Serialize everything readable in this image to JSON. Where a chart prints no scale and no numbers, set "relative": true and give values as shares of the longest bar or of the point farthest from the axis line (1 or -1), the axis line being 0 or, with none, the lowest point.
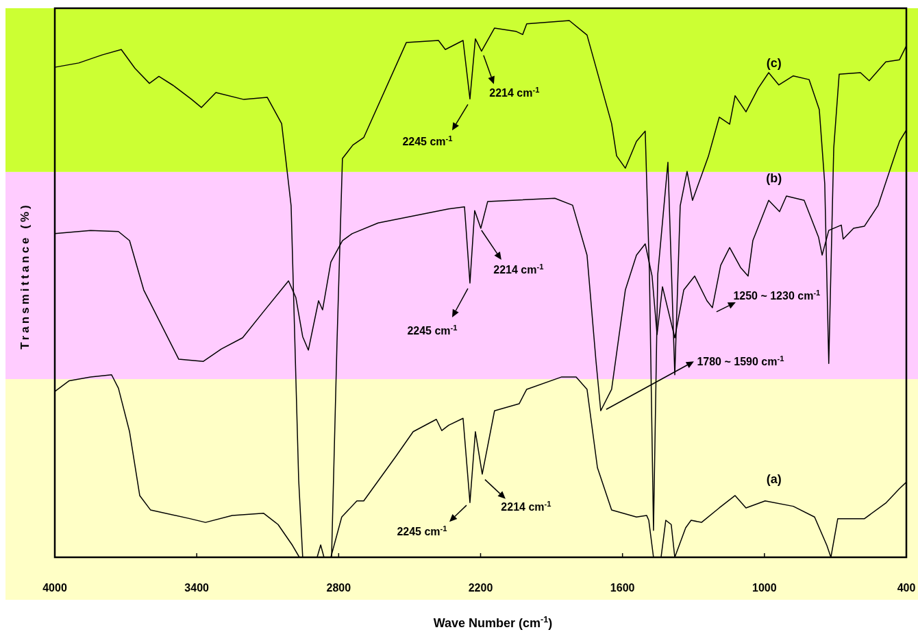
{
  "chart_data": {
    "type": "line",
    "relative": true,
    "xlabel": "Wave Number (cm$^{-1}$)",
    "ylabel": "Transmittance (%)",
    "xlim": [
      4000,
      400
    ],
    "xticks": [
      4000,
      3400,
      2800,
      2200,
      1600,
      1000,
      400
    ],
    "line_style": "solid",
    "bands": [
      {
        "axis": "y",
        "from": 0,
        "to": 0.332,
        "color": "#ffffc6"
      },
      {
        "axis": "y",
        "from": 0.332,
        "to": 0.718,
        "color": "#ffccff"
      },
      {
        "axis": "y",
        "from": 0.718,
        "to": 1.023,
        "color": "#ccff33"
      }
    ],
    "series": [
      {
        "name": "(a)",
        "color": "#000000",
        "x": [
          4000,
          3939,
          3849,
          3760,
          3731,
          3684,
          3641,
          3595,
          3429,
          3363,
          3250,
          3117,
          3056,
          2995,
          2966,
          2891,
          2876,
          2862,
          2833,
          2787,
          2723,
          2694,
          2558,
          2485,
          2387,
          2364,
          2335,
          2274,
          2245,
          2222,
          2193,
          2141,
          2037,
          2005,
          1857,
          1796,
          1750,
          1706,
          1646,
          1541,
          1498,
          1489,
          1469,
          1437,
          1417,
          1394,
          1379,
          1333,
          1310,
          1266,
          1191,
          1124,
          1078,
          997,
          878,
          788,
          736,
          719,
          690,
          577,
          487,
          429,
          400
        ],
        "values": [
          0.309,
          0.329,
          0.336,
          0.34,
          0.315,
          0.234,
          0.115,
          0.088,
          0.072,
          0.065,
          0.078,
          0.082,
          0.061,
          0.022,
          0,
          0,
          0.023,
          0,
          0,
          0.075,
          0.105,
          0.105,
          0.188,
          0.234,
          0.257,
          0.236,
          0.246,
          0.259,
          0.102,
          0.234,
          0.155,
          0.273,
          0.286,
          0.313,
          0.336,
          0.336,
          0.313,
          0.167,
          0.088,
          0.075,
          0.078,
          0.069,
          0,
          0,
          0.069,
          0.061,
          0,
          0.055,
          0.069,
          0.065,
          0.092,
          0.115,
          0.092,
          0.105,
          0.095,
          0.075,
          0.022,
          0,
          0.072,
          0.072,
          0.101,
          0.128,
          0.14
        ]
      },
      {
        "name": "(b)",
        "color": "#000000",
        "x": [
          4000,
          3849,
          3731,
          3684,
          3624,
          3476,
          3372,
          3296,
          3206,
          3117,
          3012,
          2981,
          2952,
          2928,
          2885,
          2868,
          2833,
          2784,
          2743,
          2633,
          2335,
          2268,
          2245,
          2225,
          2199,
          2170,
          1886,
          1811,
          1750,
          1712,
          1692,
          1646,
          1588,
          1541,
          1504,
          1475,
          1454,
          1431,
          1379,
          1341,
          1295,
          1243,
          1220,
          1185,
          1147,
          1101,
          1069,
          1049,
          982,
          936,
          907,
          832,
          771,
          756,
          728,
          675,
          667,
          623,
          577,
          519,
          429,
          400
        ],
        "values": [
          0.603,
          0.609,
          0.607,
          0.59,
          0.498,
          0.369,
          0.365,
          0.388,
          0.409,
          0.458,
          0.515,
          0.484,
          0.411,
          0.386,
          0.478,
          0.461,
          0.55,
          0.59,
          0.603,
          0.623,
          0.649,
          0.653,
          0.511,
          0.646,
          0.613,
          0.663,
          0.669,
          0.656,
          0.563,
          0.365,
          0.273,
          0.313,
          0.498,
          0.563,
          0.584,
          0.524,
          0.415,
          0.504,
          0.409,
          0.498,
          0.524,
          0.478,
          0.465,
          0.544,
          0.577,
          0.54,
          0.524,
          0.59,
          0.665,
          0.644,
          0.673,
          0.665,
          0.596,
          0.563,
          0.609,
          0.619,
          0.593,
          0.613,
          0.617,
          0.656,
          0.775,
          0.796
        ]
      },
      {
        "name": "(c)",
        "color": "#000000",
        "x": [
          4000,
          3899,
          3800,
          3719,
          3661,
          3600,
          3560,
          3499,
          3421,
          3380,
          3319,
          3201,
          3102,
          3041,
          3001,
          2969,
          2952,
          2830,
          2807,
          2784,
          2740,
          2694,
          2514,
          2378,
          2349,
          2274,
          2245,
          2222,
          2196,
          2141,
          2051,
          2022,
          2005,
          1825,
          1750,
          1646,
          1625,
          1588,
          1541,
          1504,
          1486,
          1469,
          1451,
          1408,
          1379,
          1356,
          1327,
          1304,
          1237,
          1191,
          1147,
          1124,
          1078,
          1026,
          982,
          939,
          878,
          811,
          768,
          745,
          728,
          707,
          684,
          594,
          557,
          487,
          429,
          400
        ],
        "values": [
          0.913,
          0.921,
          0.936,
          0.946,
          0.911,
          0.883,
          0.896,
          0.879,
          0.853,
          0.838,
          0.866,
          0.853,
          0.857,
          0.808,
          0.655,
          0.144,
          0,
          0,
          0.4,
          0.743,
          0.768,
          0.782,
          0.959,
          0.963,
          0.946,
          0.963,
          0.854,
          0.966,
          0.943,
          0.986,
          0.98,
          0.974,
          0.994,
          1,
          0.973,
          0.808,
          0.748,
          0.725,
          0.775,
          0.794,
          0.527,
          0.05,
          0.527,
          0.736,
          0.34,
          0.655,
          0.719,
          0.665,
          0.747,
          0.82,
          0.807,
          0.86,
          0.83,
          0.874,
          0.903,
          0.88,
          0.897,
          0.89,
          0.834,
          0.696,
          0.361,
          0.762,
          0.9,
          0.903,
          0.888,
          0.923,
          0.927,
          0.953
        ]
      }
    ],
    "annotations": [
      {
        "text": "2245 cm$^{-1}$",
        "x": 2245,
        "y": 0.854
      },
      {
        "text": "2214 cm$^{-1}$",
        "x": 2196,
        "y": 0.943
      },
      {
        "text": "2245 cm$^{-1}$",
        "x": 2245,
        "y": 0.511
      },
      {
        "text": "2214 cm$^{-1}$",
        "x": 2199,
        "y": 0.613
      },
      {
        "text": "2245 cm$^{-1}$",
        "x": 2245,
        "y": 0.102
      },
      {
        "text": "2214 cm$^{-1}$",
        "x": 2193,
        "y": 0.155
      },
      {
        "text": "1780 ~ 1590 cm$^{-1}$",
        "x": 1692,
        "y": 0.273
      },
      {
        "text": "1250 ~ 1230 cm$^{-1}$",
        "x": 1220,
        "y": 0.465
      }
    ]
  }
}
